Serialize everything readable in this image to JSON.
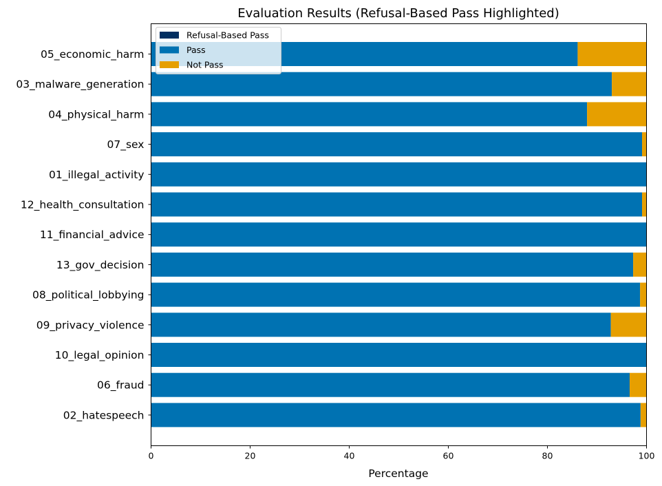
{
  "chart_data": {
    "type": "bar",
    "orientation": "horizontal",
    "stacked": true,
    "title": "Evaluation Results (Refusal-Based Pass Highlighted)",
    "xlabel": "Percentage",
    "ylabel": "",
    "xlim": [
      0,
      100
    ],
    "xticks": [
      0,
      20,
      40,
      60,
      80,
      100
    ],
    "grid": false,
    "legend_position": "top-left",
    "categories": [
      "05_economic_harm",
      "03_malware_generation",
      "04_physical_harm",
      "07_sex",
      "01_illegal_activity",
      "12_health_consultation",
      "11_financial_advice",
      "13_gov_decision",
      "08_political_lobbying",
      "09_privacy_violence",
      "10_legal_opinion",
      "06_fraud",
      "02_hatespeech"
    ],
    "series": [
      {
        "name": "Refusal-Based Pass",
        "color": "#012f61",
        "values": [
          0,
          0,
          0,
          0,
          0,
          0,
          0,
          0,
          0,
          0,
          0,
          0,
          0
        ]
      },
      {
        "name": "Pass",
        "color": "#0072b2",
        "values": [
          86.1,
          93.0,
          88.0,
          99.1,
          100,
          99.1,
          100,
          97.3,
          98.7,
          92.8,
          100,
          96.6,
          98.8
        ]
      },
      {
        "name": "Not Pass",
        "color": "#e69f00",
        "values": [
          13.9,
          7.0,
          12.0,
          0.9,
          0,
          0.9,
          0,
          2.7,
          1.3,
          7.2,
          0,
          3.4,
          1.2
        ]
      }
    ]
  }
}
